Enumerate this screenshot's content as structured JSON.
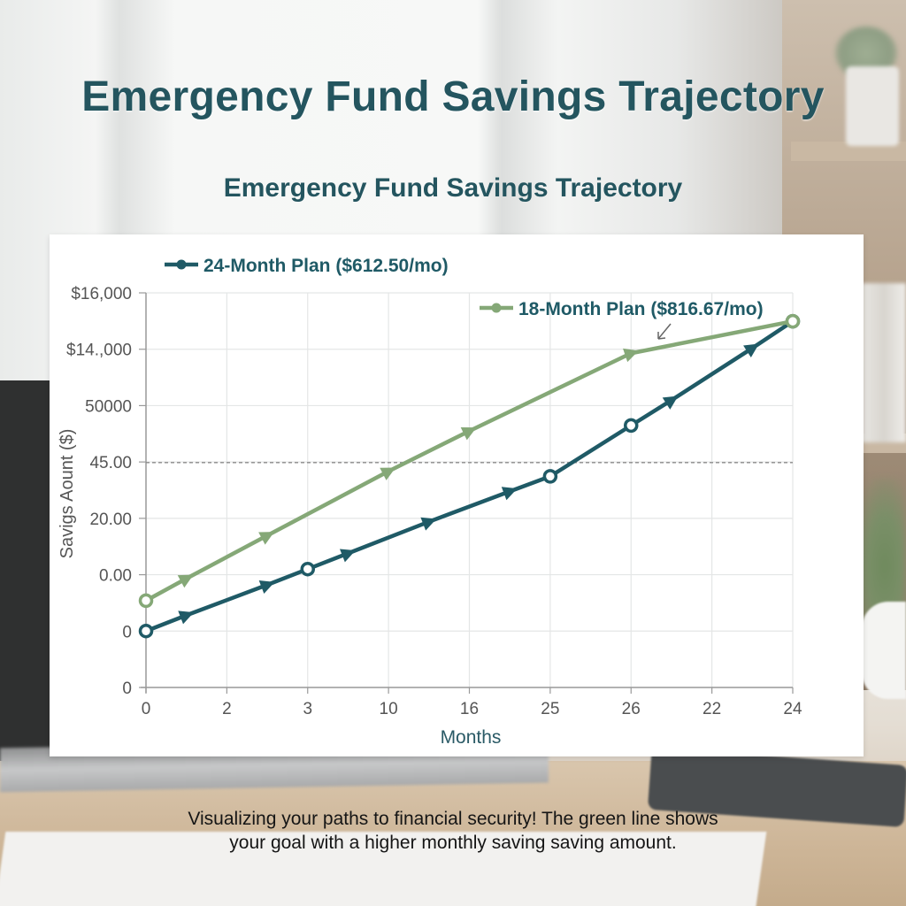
{
  "header": {
    "title": "Emergency Fund Savings Trajectory",
    "subtitle": "Emergency Fund Savings Trajectory"
  },
  "caption": {
    "line1": "Visualizing your paths to financial security! The green line shows",
    "line2": "your goal with a higher monthly saving saving amount."
  },
  "colors": {
    "plan24": "#1f5a66",
    "plan18": "#85a877",
    "title": "#24555f",
    "grid": "#e4e6e6",
    "axis": "#9a9a9a",
    "tick_text": "#555555",
    "dashed": "#8a8a8a"
  },
  "chart_data": {
    "type": "line",
    "title": "Emergency Fund Savings Trajectory",
    "xlabel": "Months",
    "ylabel": "Savigs Aount ($)",
    "x_tick_labels": [
      "0",
      "2",
      "3",
      "10",
      "16",
      "25",
      "26",
      "22",
      "24"
    ],
    "y_tick_labels": [
      "$16,000",
      "$14.,000",
      "50000",
      "45.00",
      "20.00",
      "0.00",
      "0",
      "0"
    ],
    "grid": true,
    "reference_line": {
      "style": "dashed",
      "position_fraction_from_top": 0.43
    },
    "legend": [
      {
        "label": "24-Month Plan ($612.50/mo)",
        "position": "top-left",
        "marker": "circle"
      },
      {
        "label": "18-Month Plan ($816.67/mo)",
        "position": "top-right",
        "marker": "circle"
      }
    ],
    "annotation": {
      "text": "↙",
      "description": "small arrow pointing to 18-month line near x index 6.4"
    },
    "series": [
      {
        "name": "24-Month Plan ($612.50/mo)",
        "color": "#1f5a66",
        "points_xy_fraction": [
          [
            0.0,
            0.143
          ],
          [
            0.5,
            0.183
          ],
          [
            1.5,
            0.26
          ],
          [
            2.0,
            0.3
          ],
          [
            2.5,
            0.34
          ],
          [
            3.5,
            0.42
          ],
          [
            4.5,
            0.497
          ],
          [
            5.0,
            0.535
          ],
          [
            6.0,
            0.664
          ],
          [
            6.5,
            0.728
          ],
          [
            7.5,
            0.86
          ],
          [
            8.0,
            0.928
          ]
        ],
        "markers": [
          "circle-open",
          "triangle",
          "triangle",
          "circle-open",
          "triangle",
          "triangle",
          "triangle",
          "circle-open",
          "circle-open",
          "triangle",
          "triangle",
          "circle-open"
        ]
      },
      {
        "name": "18-Month Plan ($816.67/mo)",
        "color": "#85a877",
        "points_xy_fraction": [
          [
            0.0,
            0.22
          ],
          [
            0.5,
            0.276
          ],
          [
            1.5,
            0.385
          ],
          [
            3.0,
            0.548
          ],
          [
            4.0,
            0.65
          ],
          [
            6.0,
            0.847
          ],
          [
            8.0,
            0.928
          ]
        ],
        "markers": [
          "circle-open",
          "triangle",
          "triangle",
          "triangle",
          "triangle",
          "triangle",
          "circle-open"
        ]
      }
    ]
  }
}
